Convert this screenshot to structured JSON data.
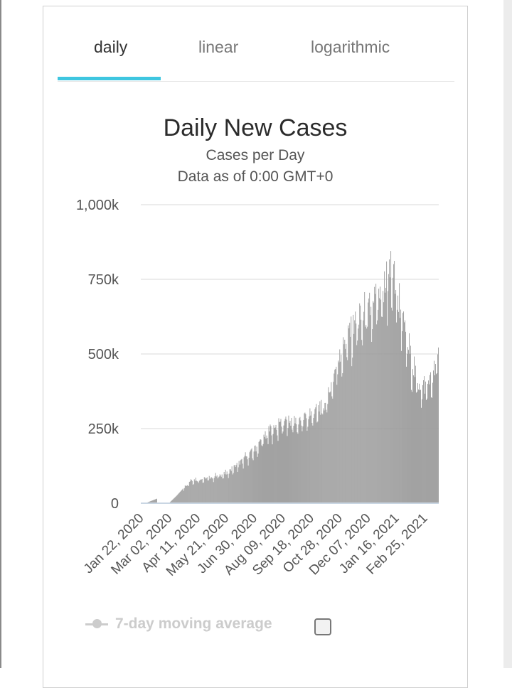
{
  "tabs": [
    {
      "label": "daily",
      "active": true
    },
    {
      "label": "linear",
      "active": false
    },
    {
      "label": "logarithmic",
      "active": false
    }
  ],
  "legend": {
    "label": "7-day moving average",
    "checked": false
  },
  "colors": {
    "accent": "#3ec6e0",
    "bars": "#999999",
    "grid": "#e6e6e6",
    "legend_disabled": "#cccccc"
  },
  "chart_data": {
    "type": "bar",
    "title": "Daily New Cases",
    "subtitle_lines": [
      "Cases per Day",
      "Data as of 0:00 GMT+0"
    ],
    "ylim": [
      0,
      1000000
    ],
    "y_ticks": [
      0,
      250000,
      500000,
      750000,
      1000000
    ],
    "y_tick_labels": [
      "0",
      "250k",
      "500k",
      "750k",
      "1,000k"
    ],
    "x_tick_labels": [
      "Jan 22, 2020",
      "Mar 02, 2020",
      "Apr 11, 2020",
      "May 21, 2020",
      "Jun 30, 2020",
      "Aug 09, 2020",
      "Sep 18, 2020",
      "Oct 28, 2020",
      "Dec 07, 2020",
      "Jan 16, 2021",
      "Feb 25, 2021"
    ],
    "x_tick_interval_days": 40,
    "days": 420,
    "grid": true,
    "series_keypoints": [
      {
        "date": "Jan 22, 2020",
        "value": 0
      },
      {
        "date": "Jan 28, 2020",
        "value": 0
      },
      {
        "date": "Feb 13, 2020",
        "value": 15000
      },
      {
        "date": "Feb 14, 2020",
        "value": 2000
      },
      {
        "date": "Mar 02, 2020",
        "value": 2000
      },
      {
        "date": "Mar 12, 2020",
        "value": 25000
      },
      {
        "date": "Apr 01, 2020",
        "value": 78000
      },
      {
        "date": "Apr 21, 2020",
        "value": 82000
      },
      {
        "date": "May 21, 2020",
        "value": 100000
      },
      {
        "date": "Jun 10, 2020",
        "value": 138000
      },
      {
        "date": "Jun 30, 2020",
        "value": 180000
      },
      {
        "date": "Jul 20, 2020",
        "value": 240000
      },
      {
        "date": "Aug 09, 2020",
        "value": 275000
      },
      {
        "date": "Aug 29, 2020",
        "value": 270000
      },
      {
        "date": "Sep 18, 2020",
        "value": 300000
      },
      {
        "date": "Oct 08, 2020",
        "value": 330000
      },
      {
        "date": "Oct 28, 2020",
        "value": 500000
      },
      {
        "date": "Nov 17, 2020",
        "value": 600000
      },
      {
        "date": "Dec 07, 2020",
        "value": 640000
      },
      {
        "date": "Dec 27, 2020",
        "value": 680000
      },
      {
        "date": "Jan 09, 2021",
        "value": 780000
      },
      {
        "date": "Jan 16, 2021",
        "value": 720000
      },
      {
        "date": "Jan 31, 2021",
        "value": 540000
      },
      {
        "date": "Feb 15, 2021",
        "value": 400000
      },
      {
        "date": "Feb 25, 2021",
        "value": 390000
      },
      {
        "date": "Mar 10, 2021",
        "value": 430000
      },
      {
        "date": "Mar 16, 2021",
        "value": 510000
      }
    ]
  }
}
